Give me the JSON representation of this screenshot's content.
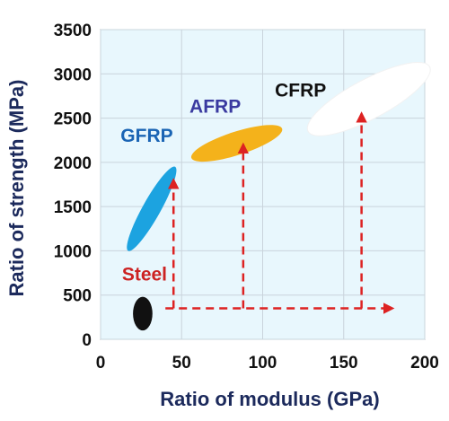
{
  "chart_data": {
    "type": "scatter",
    "title": "",
    "xlabel": "Ratio of modulus (GPa)",
    "ylabel": "Ratio of strength (MPa)",
    "xlim": [
      0,
      200
    ],
    "ylim": [
      0,
      3500
    ],
    "x_ticks": [
      "0",
      "50",
      "100",
      "150",
      "200"
    ],
    "y_ticks": [
      "0",
      "500",
      "1000",
      "1500",
      "2000",
      "2500",
      "3000",
      "3500"
    ],
    "grid": true,
    "plot_background": "#e8f7fd",
    "series": [
      {
        "name": "Steel",
        "x_range": [
          20,
          32
        ],
        "y_range": [
          100,
          480
        ],
        "color": "#111111",
        "label_color": "#cc2222"
      },
      {
        "name": "GFRP",
        "x_range": [
          17,
          46
        ],
        "y_range": [
          1000,
          1950
        ],
        "color": "#1ca3e0",
        "label_color": "#1a64b4"
      },
      {
        "name": "AFRP",
        "x_range": [
          56,
          112
        ],
        "y_range": [
          2050,
          2380
        ],
        "color": "#f4b21b",
        "label_color": "#3a3aa0"
      },
      {
        "name": "CFRP",
        "x_range": [
          128,
          203
        ],
        "y_range": [
          2350,
          3080
        ],
        "color": "#ffffff",
        "label_color": "#111111"
      }
    ],
    "arrows": [
      {
        "from": [
          40,
          350
        ],
        "to": [
          180,
          350
        ],
        "color": "#dd2222"
      },
      {
        "from": [
          45,
          350
        ],
        "to": [
          45,
          1800
        ],
        "color": "#dd2222"
      },
      {
        "from": [
          88,
          350
        ],
        "to": [
          88,
          2200
        ],
        "color": "#dd2222"
      },
      {
        "from": [
          161,
          350
        ],
        "to": [
          161,
          2550
        ],
        "color": "#dd2222"
      }
    ]
  }
}
